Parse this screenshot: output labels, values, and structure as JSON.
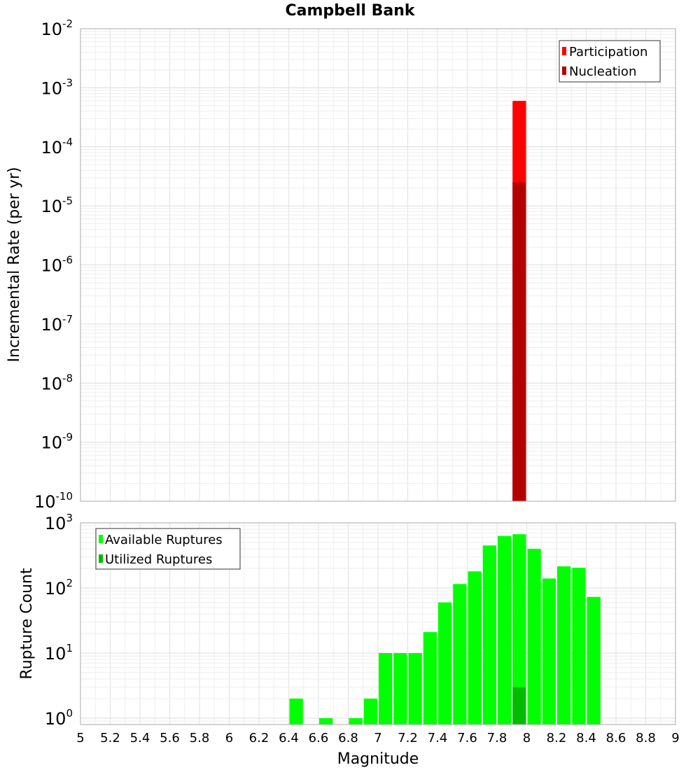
{
  "title": "Campbell Bank",
  "xlabel": "Magnitude",
  "chart_data": [
    {
      "type": "bar",
      "ylabel": "Incremental Rate (per yr)",
      "yscale": "log",
      "ylim": [
        1e-10,
        0.01
      ],
      "xlim": [
        5,
        9
      ],
      "bin_width": 0.1,
      "grid": true,
      "legend_position": "top-right",
      "y_ticks": [
        {
          "base": "10",
          "exp": "-10"
        },
        {
          "base": "10",
          "exp": "-9"
        },
        {
          "base": "10",
          "exp": "-8"
        },
        {
          "base": "10",
          "exp": "-7"
        },
        {
          "base": "10",
          "exp": "-6"
        },
        {
          "base": "10",
          "exp": "-5"
        },
        {
          "base": "10",
          "exp": "-4"
        },
        {
          "base": "10",
          "exp": "-3"
        },
        {
          "base": "10",
          "exp": "-2"
        }
      ],
      "series": [
        {
          "name": "Participation",
          "color": "#ff0000",
          "x": [
            7.95
          ],
          "values": [
            0.0006
          ]
        },
        {
          "name": "Nucleation",
          "color": "#b30000",
          "x": [
            7.95
          ],
          "values": [
            2.5e-05
          ]
        }
      ]
    },
    {
      "type": "bar",
      "ylabel": "Rupture Count",
      "yscale": "log",
      "ylim": [
        0.8,
        1000
      ],
      "xlim": [
        5,
        9
      ],
      "bin_width": 0.1,
      "grid": true,
      "legend_position": "top-left",
      "y_ticks": [
        {
          "base": "10",
          "exp": "0",
          "value": 1
        },
        {
          "base": "10",
          "exp": "1",
          "value": 10
        },
        {
          "base": "10",
          "exp": "2",
          "value": 100
        },
        {
          "base": "10",
          "exp": "3",
          "value": 1000
        }
      ],
      "x_ticks": [
        "5",
        "5.2",
        "5.4",
        "5.6",
        "5.8",
        "6",
        "6.2",
        "6.4",
        "6.6",
        "6.8",
        "7",
        "7.2",
        "7.4",
        "7.6",
        "7.8",
        "8",
        "8.2",
        "8.4",
        "8.6",
        "8.8",
        "9"
      ],
      "series": [
        {
          "name": "Available Ruptures",
          "color": "#00ff00",
          "x": [
            6.45,
            6.65,
            6.85,
            6.95,
            7.05,
            7.15,
            7.25,
            7.35,
            7.45,
            7.55,
            7.65,
            7.75,
            7.85,
            7.95,
            8.05,
            8.15,
            8.25,
            8.35,
            8.45
          ],
          "values": [
            2,
            1,
            1,
            2,
            10,
            10,
            10,
            21,
            60,
            115,
            180,
            450,
            630,
            670,
            400,
            140,
            215,
            205,
            73
          ]
        },
        {
          "name": "Utilized Ruptures",
          "color": "#00bb00",
          "x": [
            7.95
          ],
          "values": [
            3
          ]
        }
      ]
    }
  ]
}
